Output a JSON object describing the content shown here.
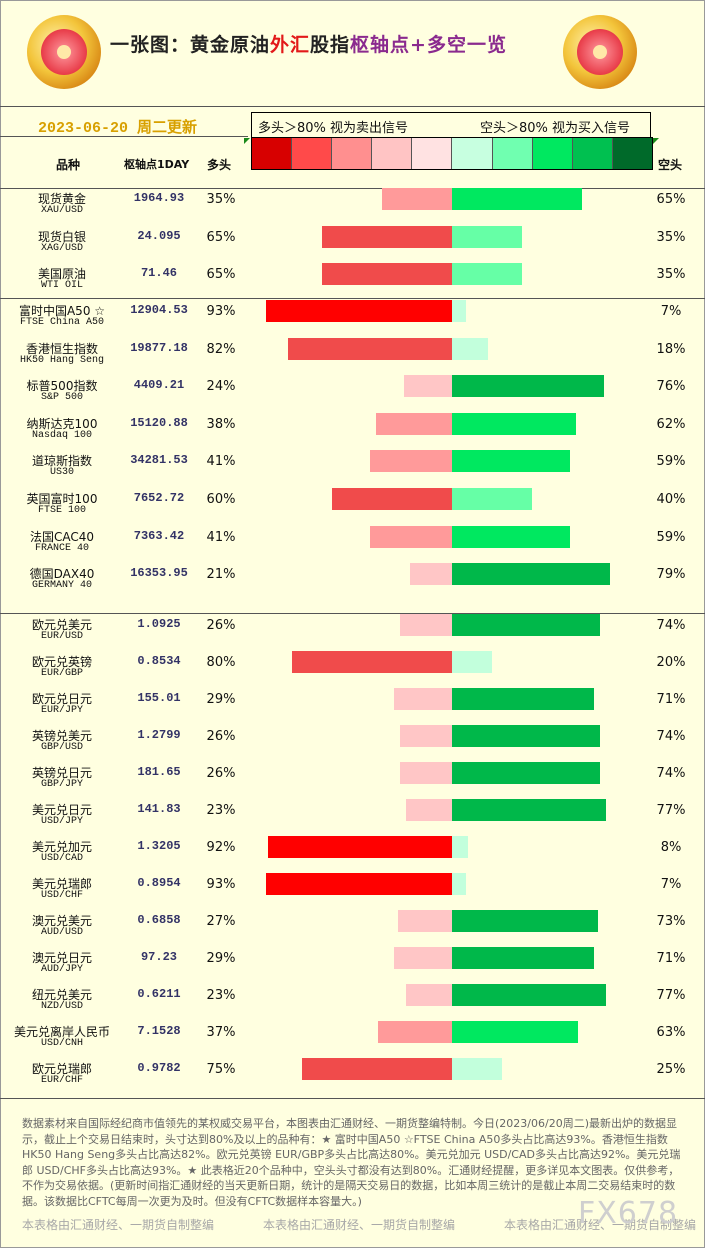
{
  "header": {
    "title_part1": "一张图：黄金原油",
    "title_part2": "外汇",
    "title_part3": "股指",
    "title_part4": "枢轴点+多空一览",
    "date": "2023-06-20 周二更新",
    "legend_long": "多头＞80% 视为卖出信号",
    "legend_short": "空头＞80% 视为买入信号",
    "col_name": "品种",
    "col_pivot": "枢轴点1DAY",
    "col_long": "多头",
    "col_short": "空头",
    "swatch_colors": [
      "#d70000",
      "#ff4a4a",
      "#ff8f8f",
      "#ffc4c4",
      "#ffe2e2",
      "#c7ffe0",
      "#70ffb0",
      "#00e860",
      "#00c050",
      "#006a2a"
    ]
  },
  "chart_data": {
    "type": "bar",
    "series": [
      {
        "name": "多头"
      },
      {
        "name": "空头"
      }
    ],
    "groups": [
      {
        "rows": [
          {
            "cn": "现货黄金",
            "en": "XAU/USD",
            "pivot": "1964.93",
            "long": 35,
            "short": 65
          },
          {
            "cn": "现货白银",
            "en": "XAG/USD",
            "pivot": "24.095",
            "long": 65,
            "short": 35
          },
          {
            "cn": "美国原油",
            "en": "WTI OIL",
            "pivot": "71.46",
            "long": 65,
            "short": 35
          }
        ]
      },
      {
        "rows": [
          {
            "cn": "富时中国A50 ☆",
            "en": "FTSE China A50",
            "pivot": "12904.53",
            "long": 93,
            "short": 7
          },
          {
            "cn": "香港恒生指数",
            "en": "HK50 Hang Seng",
            "pivot": "19877.18",
            "long": 82,
            "short": 18
          },
          {
            "cn": "标普500指数",
            "en": "S&P 500",
            "pivot": "4409.21",
            "long": 24,
            "short": 76
          },
          {
            "cn": "纳斯达克100",
            "en": "Nasdaq 100",
            "pivot": "15120.88",
            "long": 38,
            "short": 62
          },
          {
            "cn": "道琼斯指数",
            "en": "US30",
            "pivot": "34281.53",
            "long": 41,
            "short": 59
          },
          {
            "cn": "英国富时100",
            "en": "FTSE 100",
            "pivot": "7652.72",
            "long": 60,
            "short": 40
          },
          {
            "cn": "法国CAC40",
            "en": "FRANCE 40",
            "pivot": "7363.42",
            "long": 41,
            "short": 59
          },
          {
            "cn": "德国DAX40",
            "en": "GERMANY 40",
            "pivot": "16353.95",
            "long": 21,
            "short": 79
          }
        ]
      },
      {
        "rows": [
          {
            "cn": "欧元兑美元",
            "en": "EUR/USD",
            "pivot": "1.0925",
            "long": 26,
            "short": 74
          },
          {
            "cn": "欧元兑英镑",
            "en": "EUR/GBP",
            "pivot": "0.8534",
            "long": 80,
            "short": 20
          },
          {
            "cn": "欧元兑日元",
            "en": "EUR/JPY",
            "pivot": "155.01",
            "long": 29,
            "short": 71
          },
          {
            "cn": "英镑兑美元",
            "en": "GBP/USD",
            "pivot": "1.2799",
            "long": 26,
            "short": 74
          },
          {
            "cn": "英镑兑日元",
            "en": "GBP/JPY",
            "pivot": "181.65",
            "long": 26,
            "short": 74
          },
          {
            "cn": "美元兑日元",
            "en": "USD/JPY",
            "pivot": "141.83",
            "long": 23,
            "short": 77
          },
          {
            "cn": "美元兑加元",
            "en": "USD/CAD",
            "pivot": "1.3205",
            "long": 92,
            "short": 8
          },
          {
            "cn": "美元兑瑞郎",
            "en": "USD/CHF",
            "pivot": "0.8954",
            "long": 93,
            "short": 7
          },
          {
            "cn": "澳元兑美元",
            "en": "AUD/USD",
            "pivot": "0.6858",
            "long": 27,
            "short": 73
          },
          {
            "cn": "澳元兑日元",
            "en": "AUD/JPY",
            "pivot": "97.23",
            "long": 29,
            "short": 71
          },
          {
            "cn": "纽元兑美元",
            "en": "NZD/USD",
            "pivot": "0.6211",
            "long": 23,
            "short": 77
          },
          {
            "cn": "美元兑离岸人民币",
            "en": "USD/CNH",
            "pivot": "7.1528",
            "long": 37,
            "short": 63
          },
          {
            "cn": "欧元兑瑞郎",
            "en": "EUR/CHF",
            "pivot": "0.9782",
            "long": 75,
            "short": 25
          }
        ]
      }
    ]
  },
  "footer": {
    "note": "数据素材来自国际经纪商市值领先的某权威交易平台，本图表由汇通财经、一期货整编特制。今日(2023/06/20周二)最新出炉的数据显示，截止上个交易日结束时，头寸达到80%及以上的品种有：★ 富时中国A50 ☆FTSE China A50多头占比高达93%。香港恒生指数 HK50 Hang Seng多头占比高达82%。欧元兑英镑 EUR/GBP多头占比高达80%。美元兑加元 USD/CAD多头占比高达92%。美元兑瑞郎 USD/CHF多头占比高达93%。★ 此表格近20个品种中，空头头寸都没有达到80%。汇通财经提醒，更多详见本文图表。仅供参考，不作为交易依据。(更新时间指汇通财经的当天更新日期，统计的是隔天交易日的数据，比如本周三统计的是截止本周二交易结束时的数据。该数据比CFTC每周一次更为及时。但没有CFTC数据样本容量大。)",
    "credit": "本表格由汇通财经、一期货自制整编",
    "watermark": "FX678"
  }
}
